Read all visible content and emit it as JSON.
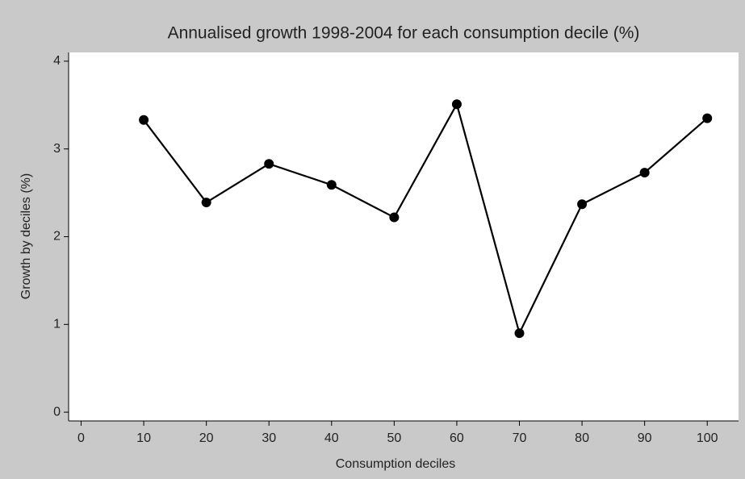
{
  "chart_data": {
    "type": "line",
    "title": "Annualised growth 1998-2004 for each consumption decile (%)",
    "x_label": "Consumption deciles",
    "y_label": "Growth by deciles (%)",
    "x": [
      10,
      20,
      30,
      40,
      50,
      60,
      70,
      80,
      90,
      100
    ],
    "series": [
      {
        "name": "Growth",
        "color": "#000000",
        "values": [
          3.33,
          2.39,
          2.83,
          2.59,
          2.22,
          3.51,
          0.9,
          2.37,
          2.73,
          3.35
        ]
      }
    ],
    "xlim": [
      -2,
      105
    ],
    "xticks": [
      0,
      10,
      20,
      30,
      40,
      50,
      60,
      70,
      80,
      90,
      100
    ],
    "ylim": [
      -0.1,
      4.1
    ],
    "yticks": [
      0,
      1,
      2,
      3,
      4
    ],
    "grid": false
  }
}
